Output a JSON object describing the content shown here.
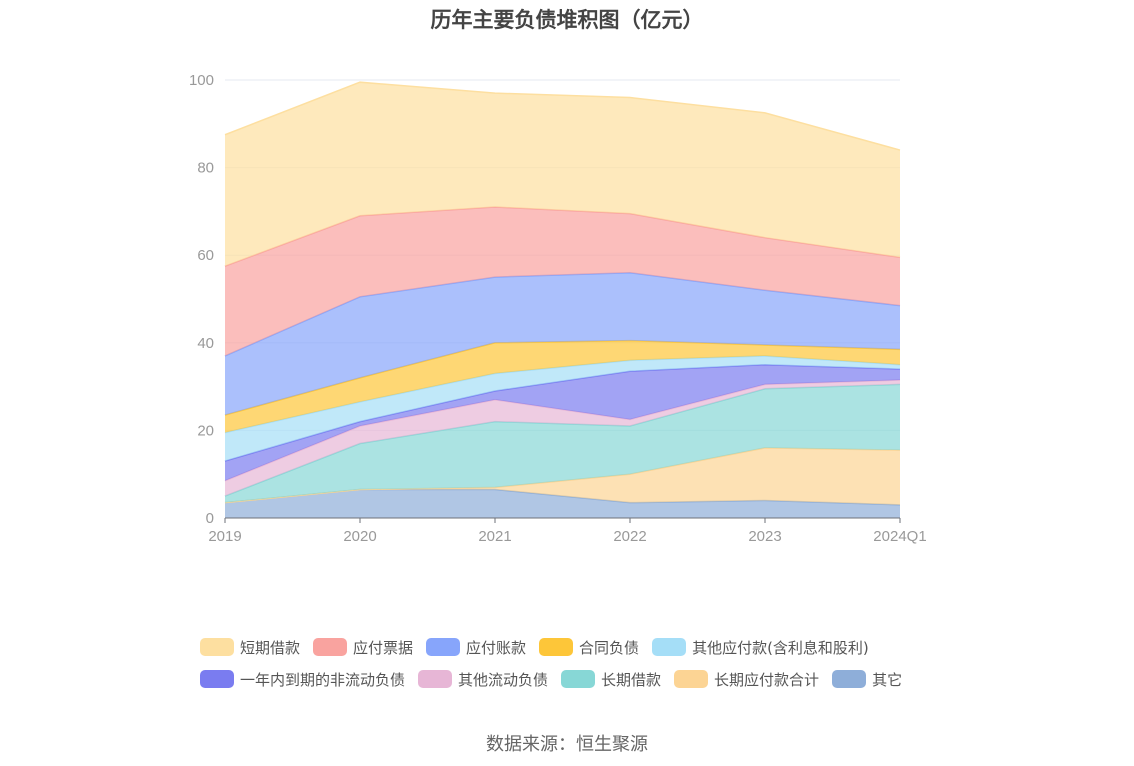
{
  "chart_data": {
    "type": "area",
    "title": "历年主要负债堆积图（亿元）",
    "categories": [
      "2019",
      "2020",
      "2021",
      "2022",
      "2023",
      "2024Q1"
    ],
    "ylim": [
      0,
      100
    ],
    "yticks": [
      0,
      20,
      40,
      60,
      80,
      100
    ],
    "grid": true,
    "legend_position": "bottom",
    "stacked": true,
    "series": [
      {
        "name": "其它",
        "color": "#8eaed9",
        "values": [
          3.5,
          6.5,
          6.5,
          3.5,
          4.0,
          3.0
        ]
      },
      {
        "name": "长期应付款合计",
        "color": "#fcd494",
        "values": [
          0.0,
          0.0,
          0.5,
          6.5,
          12.0,
          12.5
        ]
      },
      {
        "name": "长期借款",
        "color": "#87d7d6",
        "values": [
          1.5,
          10.5,
          15.0,
          11.0,
          13.5,
          15.0
        ]
      },
      {
        "name": "其他流动负债",
        "color": "#e7b6d6",
        "values": [
          3.5,
          4.0,
          5.0,
          1.5,
          1.0,
          1.0
        ]
      },
      {
        "name": "一年内到期的非流动负债",
        "color": "#7a7cf0",
        "values": [
          4.5,
          1.0,
          2.0,
          11.0,
          4.5,
          2.5
        ]
      },
      {
        "name": "其他应付款(含利息和股利)",
        "color": "#a5def7",
        "values": [
          6.5,
          4.5,
          4.0,
          2.5,
          2.0,
          1.0
        ]
      },
      {
        "name": "合同负债",
        "color": "#fdc639",
        "values": [
          4.0,
          5.5,
          7.0,
          4.5,
          2.5,
          3.5
        ]
      },
      {
        "name": "应付账款",
        "color": "#87a5fb",
        "values": [
          13.5,
          18.5,
          15.0,
          15.5,
          12.5,
          10.0
        ]
      },
      {
        "name": "应付票据",
        "color": "#f9a39f",
        "values": [
          20.5,
          18.5,
          16.0,
          13.5,
          12.0,
          11.0
        ]
      },
      {
        "name": "短期借款",
        "color": "#fddfa0",
        "values": [
          30.0,
          30.5,
          26.0,
          26.5,
          28.5,
          24.5
        ]
      }
    ],
    "legend_rows": [
      [
        "短期借款",
        "应付票据",
        "应付账款",
        "合同负债",
        "其他应付款(含利息和股利)"
      ],
      [
        "一年内到期的非流动负债",
        "其他流动负债",
        "长期借款",
        "长期应付款合计",
        "其它"
      ]
    ],
    "source": "数据来源：恒生聚源"
  }
}
